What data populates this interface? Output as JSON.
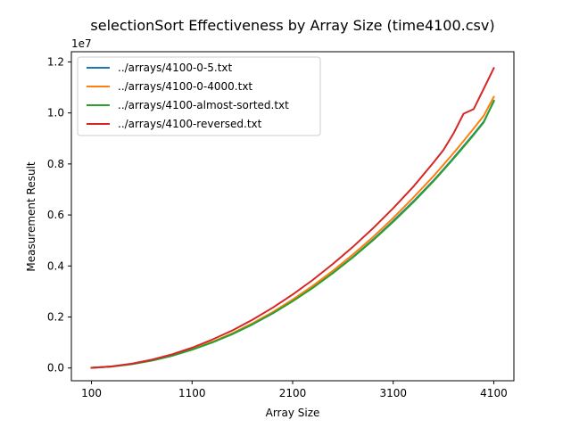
{
  "chart_data": {
    "type": "line",
    "title": "selectionSort Effectiveness by Array Size (time4100.csv)",
    "xlabel": "Array Size",
    "ylabel": "Measurement Result",
    "y_offset_label": "1e7",
    "xlim": [
      -100,
      4300
    ],
    "ylim": [
      -500000,
      12400000
    ],
    "x_ticks": [
      100,
      1100,
      2100,
      3100,
      4100
    ],
    "x_tick_labels": [
      "100",
      "1100",
      "2100",
      "3100",
      "4100"
    ],
    "y_ticks": [
      0,
      2000000,
      4000000,
      6000000,
      8000000,
      10000000,
      12000000
    ],
    "y_tick_labels": [
      "0.0",
      "0.2",
      "0.4",
      "0.6",
      "0.8",
      "1.0",
      "1.2"
    ],
    "grid": false,
    "legend_position": "top-left",
    "x": [
      100,
      300,
      500,
      700,
      900,
      1100,
      1300,
      1500,
      1700,
      1900,
      2100,
      2300,
      2500,
      2700,
      2900,
      3100,
      3300,
      3500,
      3600,
      3700,
      3800,
      3900,
      4000,
      4100
    ],
    "series": [
      {
        "name": "../arrays/4100-0-5.txt",
        "color": "#1f77b4",
        "values": [
          6000,
          56000,
          150000,
          290000,
          480000,
          720000,
          1000000,
          1330000,
          1710000,
          2140000,
          2620000,
          3150000,
          3730000,
          4350000,
          5030000,
          5760000,
          6530000,
          7350000,
          7790000,
          8240000,
          8700000,
          9170000,
          9660000,
          10450000
        ]
      },
      {
        "name": "../arrays/4100-0-4000.txt",
        "color": "#ff7f0e",
        "values": [
          6000,
          57000,
          154000,
          298000,
          490000,
          735000,
          1020000,
          1360000,
          1750000,
          2190000,
          2680000,
          3220000,
          3810000,
          4450000,
          5140000,
          5880000,
          6680000,
          7520000,
          7970000,
          8430000,
          8900000,
          9390000,
          9890000,
          10630000
        ]
      },
      {
        "name": "../arrays/4100-almost-sorted.txt",
        "color": "#2ca02c",
        "values": [
          6000,
          55000,
          150000,
          290000,
          478000,
          716000,
          1000000,
          1330000,
          1710000,
          2140000,
          2620000,
          3140000,
          3720000,
          4340000,
          5010000,
          5730000,
          6500000,
          7320000,
          7760000,
          8210000,
          8670000,
          9140000,
          9630000,
          10480000
        ]
      },
      {
        "name": "../arrays/4100-reversed.txt",
        "color": "#d62728",
        "values": [
          7000,
          62000,
          168000,
          325000,
          533000,
          795000,
          1110000,
          1470000,
          1890000,
          2360000,
          2880000,
          3450000,
          4080000,
          4750000,
          5480000,
          6260000,
          7110000,
          8050000,
          8550000,
          9200000,
          9970000,
          10150000,
          10950000,
          11760000
        ]
      }
    ]
  }
}
